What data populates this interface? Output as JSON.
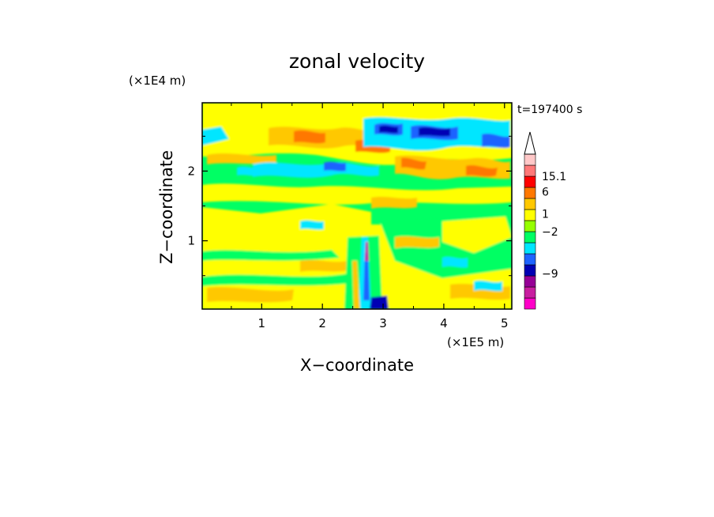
{
  "chart_data": {
    "type": "heatmap",
    "title": "zonal velocity",
    "xlabel": "X−coordinate",
    "ylabel": "Z−coordinate",
    "x_unit": "(×1E5 m)",
    "y_unit": "(×1E4 m)",
    "time_label": "t=197400 s",
    "xlim": [
      0.02,
      5.12
    ],
    "ylim": [
      0.02,
      2.98
    ],
    "x_ticks": [
      {
        "value": 1,
        "label": "1"
      },
      {
        "value": 2,
        "label": "2"
      },
      {
        "value": 3,
        "label": "3"
      },
      {
        "value": 4,
        "label": "4"
      },
      {
        "value": 5,
        "label": "5"
      }
    ],
    "y_ticks": [
      {
        "value": 1,
        "label": "1"
      },
      {
        "value": 2,
        "label": "2"
      }
    ],
    "colorbar": {
      "levels": [
        {
          "color": "#ff00c8"
        },
        {
          "color": "#c81ea0"
        },
        {
          "color": "#960096"
        },
        {
          "color": "#0000b4"
        },
        {
          "color": "#1e64ff"
        },
        {
          "color": "#00e6ff"
        },
        {
          "color": "#00ff64"
        },
        {
          "color": "#96ff00"
        },
        {
          "color": "#ffff00"
        },
        {
          "color": "#ffc800"
        },
        {
          "color": "#ff7800"
        },
        {
          "color": "#ff0000"
        },
        {
          "color": "#ff7878"
        },
        {
          "color": "#ffc8c8"
        }
      ],
      "labels": [
        {
          "text": "15.1",
          "at": 12
        },
        {
          "text": "6",
          "at": 10.6
        },
        {
          "text": "1",
          "at": 8.6
        },
        {
          "text": "−2",
          "at": 7.0
        },
        {
          "text": "−9",
          "at": 3.2
        }
      ]
    }
  }
}
